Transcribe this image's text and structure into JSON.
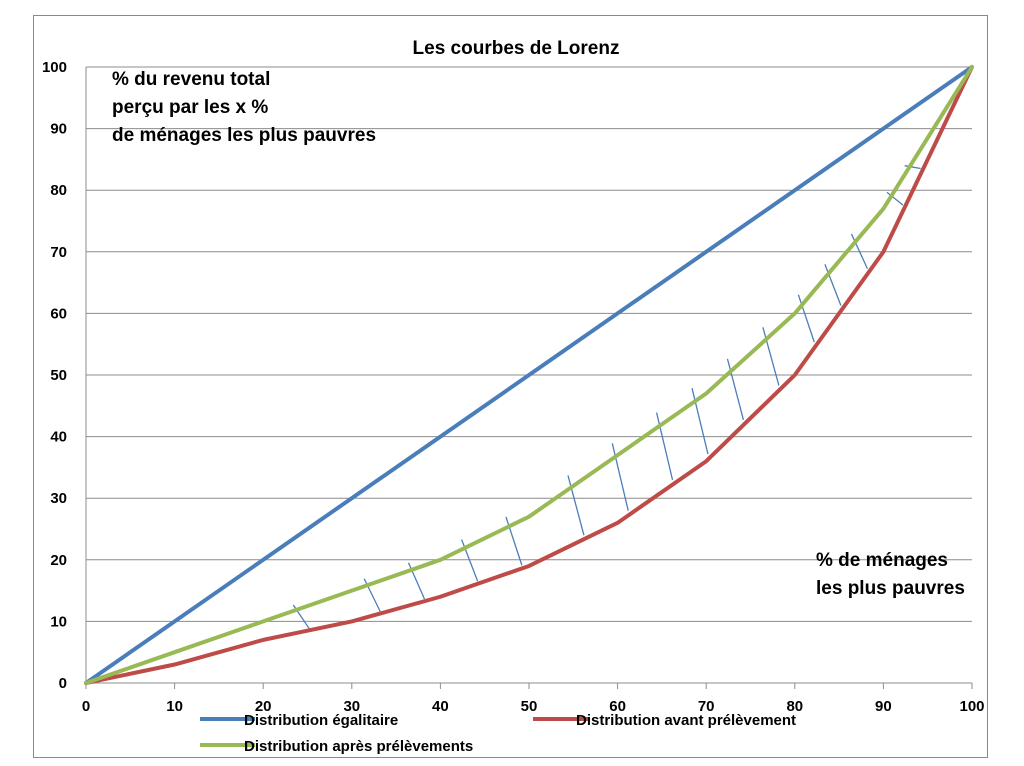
{
  "chart_data": {
    "type": "line",
    "title": "Les courbes de Lorenz",
    "xlim": [
      0,
      100
    ],
    "ylim": [
      0,
      100
    ],
    "x_ticks": [
      "0",
      "10",
      "20",
      "30",
      "40",
      "50",
      "60",
      "70",
      "80",
      "90",
      "100"
    ],
    "y_ticks": [
      "0",
      "10",
      "20",
      "30",
      "40",
      "50",
      "60",
      "70",
      "80",
      "90",
      "100"
    ],
    "grid": "horizontal",
    "y_annotation": [
      "% du revenu total",
      "perçu par les x %",
      "de ménages les plus pauvres"
    ],
    "x_annotation": [
      "% de ménages",
      "les plus pauvres"
    ],
    "legend_position": "bottom",
    "series": [
      {
        "name": "Distribution égalitaire",
        "color": "#4a7ebb",
        "points": [
          [
            0,
            0
          ],
          [
            100,
            100
          ]
        ]
      },
      {
        "name": "Distribution avant prélèvement",
        "color": "#be4b48",
        "points": [
          [
            0,
            0
          ],
          [
            10,
            3
          ],
          [
            20,
            7
          ],
          [
            30,
            10
          ],
          [
            40,
            14
          ],
          [
            50,
            19
          ],
          [
            60,
            26
          ],
          [
            70,
            36
          ],
          [
            80,
            50
          ],
          [
            90,
            70
          ],
          [
            100,
            100
          ]
        ]
      },
      {
        "name": "Distribution après prélèvements",
        "color": "#98b954",
        "points": [
          [
            0,
            0
          ],
          [
            10,
            5
          ],
          [
            20,
            10
          ],
          [
            30,
            15
          ],
          [
            40,
            20
          ],
          [
            50,
            27
          ],
          [
            60,
            37
          ],
          [
            70,
            47
          ],
          [
            80,
            60
          ],
          [
            90,
            77
          ],
          [
            100,
            100
          ]
        ]
      }
    ],
    "hatch_color": "#4a7ebb",
    "hatch_x": [
      24,
      32,
      37,
      43,
      48,
      55,
      60,
      65,
      69,
      73,
      77,
      81,
      84,
      87,
      91,
      93
    ]
  }
}
